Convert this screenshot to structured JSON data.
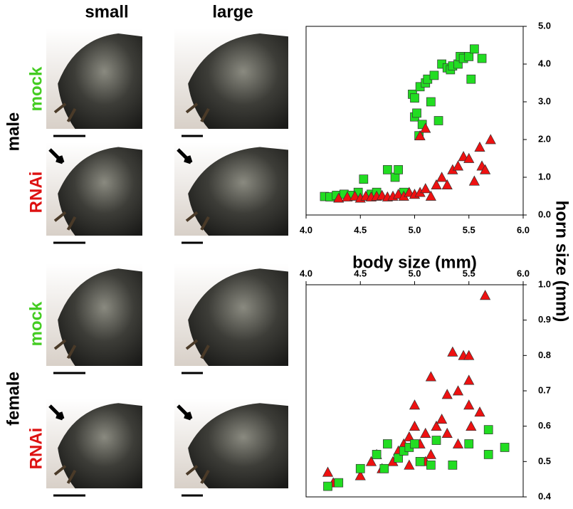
{
  "figure": {
    "column_labels": [
      "small",
      "large"
    ],
    "sex_labels": [
      "male",
      "female"
    ],
    "treatment_labels": [
      {
        "text": "mock",
        "color": "#44cc22"
      },
      {
        "text": "RNAi",
        "color": "#dd1111"
      },
      {
        "text": "mock",
        "color": "#44cc22"
      },
      {
        "text": "RNAi",
        "color": "#dd1111"
      }
    ]
  },
  "chart_data": [
    {
      "type": "scatter",
      "xlabel": "body size (mm)",
      "ylabel": "horn size (mm)",
      "xlim": [
        4,
        6
      ],
      "xticks": [
        {
          "value": 4,
          "label": "4.0"
        },
        4.5,
        {
          "value": 5,
          "label": "5.0"
        },
        5.5,
        {
          "value": 6,
          "label": "6.0"
        }
      ],
      "ylim": [
        0,
        5
      ],
      "yticks": [
        {
          "value": 0,
          "label": "0.0"
        },
        {
          "value": 1,
          "label": "1.0"
        },
        {
          "value": 2,
          "label": "2.0"
        },
        {
          "value": 3,
          "label": "3.0"
        },
        {
          "value": 4,
          "label": "4.0"
        },
        {
          "value": 5,
          "label": "5.0"
        }
      ],
      "series": [
        {
          "name": "mock",
          "marker": "square",
          "color": "#22dd22",
          "x": [
            4.17,
            4.22,
            4.28,
            4.35,
            4.42,
            4.48,
            4.53,
            4.6,
            4.65,
            4.75,
            4.82,
            4.85,
            4.9,
            4.98,
            5.0,
            5.0,
            5.02,
            5.04,
            5.05,
            5.07,
            5.1,
            5.12,
            5.15,
            5.18,
            5.22,
            5.25,
            5.3,
            5.33,
            5.35,
            5.4,
            5.42,
            5.45,
            5.5,
            5.52,
            5.55,
            5.62
          ],
          "values": [
            0.49,
            0.48,
            0.52,
            0.55,
            0.52,
            0.6,
            0.95,
            0.55,
            0.6,
            1.2,
            1.0,
            1.2,
            0.6,
            3.2,
            3.1,
            2.6,
            2.7,
            2.1,
            3.4,
            2.4,
            3.5,
            3.6,
            3.0,
            3.7,
            2.5,
            4.0,
            3.9,
            3.85,
            3.95,
            4.0,
            4.2,
            4.15,
            4.2,
            3.6,
            4.4,
            4.15
          ]
        },
        {
          "name": "RNAi",
          "marker": "triangle",
          "color": "#ee1111",
          "x": [
            4.3,
            4.38,
            4.45,
            4.5,
            4.55,
            4.6,
            4.65,
            4.7,
            4.75,
            4.8,
            4.85,
            4.9,
            4.95,
            5.0,
            5.05,
            5.05,
            5.1,
            5.1,
            5.15,
            5.2,
            5.25,
            5.3,
            5.35,
            5.4,
            5.45,
            5.5,
            5.55,
            5.6,
            5.62,
            5.65,
            5.7
          ],
          "values": [
            0.45,
            0.48,
            0.5,
            0.45,
            0.5,
            0.48,
            0.5,
            0.52,
            0.48,
            0.5,
            0.55,
            0.5,
            0.6,
            0.55,
            2.1,
            0.6,
            2.3,
            0.7,
            0.5,
            0.8,
            1.0,
            0.8,
            1.2,
            1.3,
            1.55,
            1.5,
            0.9,
            1.8,
            1.3,
            1.2,
            2.0
          ]
        }
      ]
    },
    {
      "type": "scatter",
      "xlim": [
        4,
        6
      ],
      "xticks": [
        {
          "value": 4,
          "label": "4.0"
        },
        4.5,
        {
          "value": 5,
          "label": "5.0"
        },
        5.5,
        {
          "value": 6,
          "label": "6.0"
        }
      ],
      "ylim": [
        0.4,
        1
      ],
      "yticks": [
        0.4,
        0.5,
        0.6,
        0.7,
        0.8,
        0.9,
        {
          "value": 1,
          "label": "1.0"
        }
      ],
      "series": [
        {
          "name": "RNAi",
          "marker": "triangle",
          "color": "#ee1111",
          "x": [
            4.2,
            4.25,
            4.5,
            4.6,
            4.65,
            4.7,
            4.8,
            4.85,
            4.9,
            4.95,
            5.0,
            5.0,
            5.05,
            5.1,
            5.15,
            5.15,
            5.2,
            5.25,
            5.3,
            5.3,
            5.35,
            5.4,
            5.4,
            5.45,
            5.5,
            5.5,
            5.5,
            5.52,
            5.6,
            5.65,
            5.1,
            4.95
          ],
          "values": [
            0.47,
            0.44,
            0.46,
            0.5,
            0.52,
            0.48,
            0.5,
            0.53,
            0.55,
            0.57,
            0.6,
            0.66,
            0.55,
            0.58,
            0.52,
            0.74,
            0.6,
            0.62,
            0.58,
            0.69,
            0.81,
            0.7,
            0.55,
            0.8,
            0.8,
            0.66,
            0.73,
            0.6,
            0.64,
            0.97,
            0.5,
            0.49
          ]
        },
        {
          "name": "mock",
          "marker": "square",
          "color": "#22dd22",
          "x": [
            4.2,
            4.3,
            4.5,
            4.65,
            4.72,
            4.75,
            4.85,
            4.9,
            4.95,
            5.0,
            5.05,
            5.15,
            5.2,
            5.35,
            5.5,
            5.68,
            5.68,
            5.83
          ],
          "values": [
            0.43,
            0.44,
            0.48,
            0.52,
            0.48,
            0.55,
            0.51,
            0.53,
            0.54,
            0.55,
            0.5,
            0.49,
            0.56,
            0.49,
            0.55,
            0.52,
            0.59,
            0.54
          ]
        }
      ]
    }
  ]
}
